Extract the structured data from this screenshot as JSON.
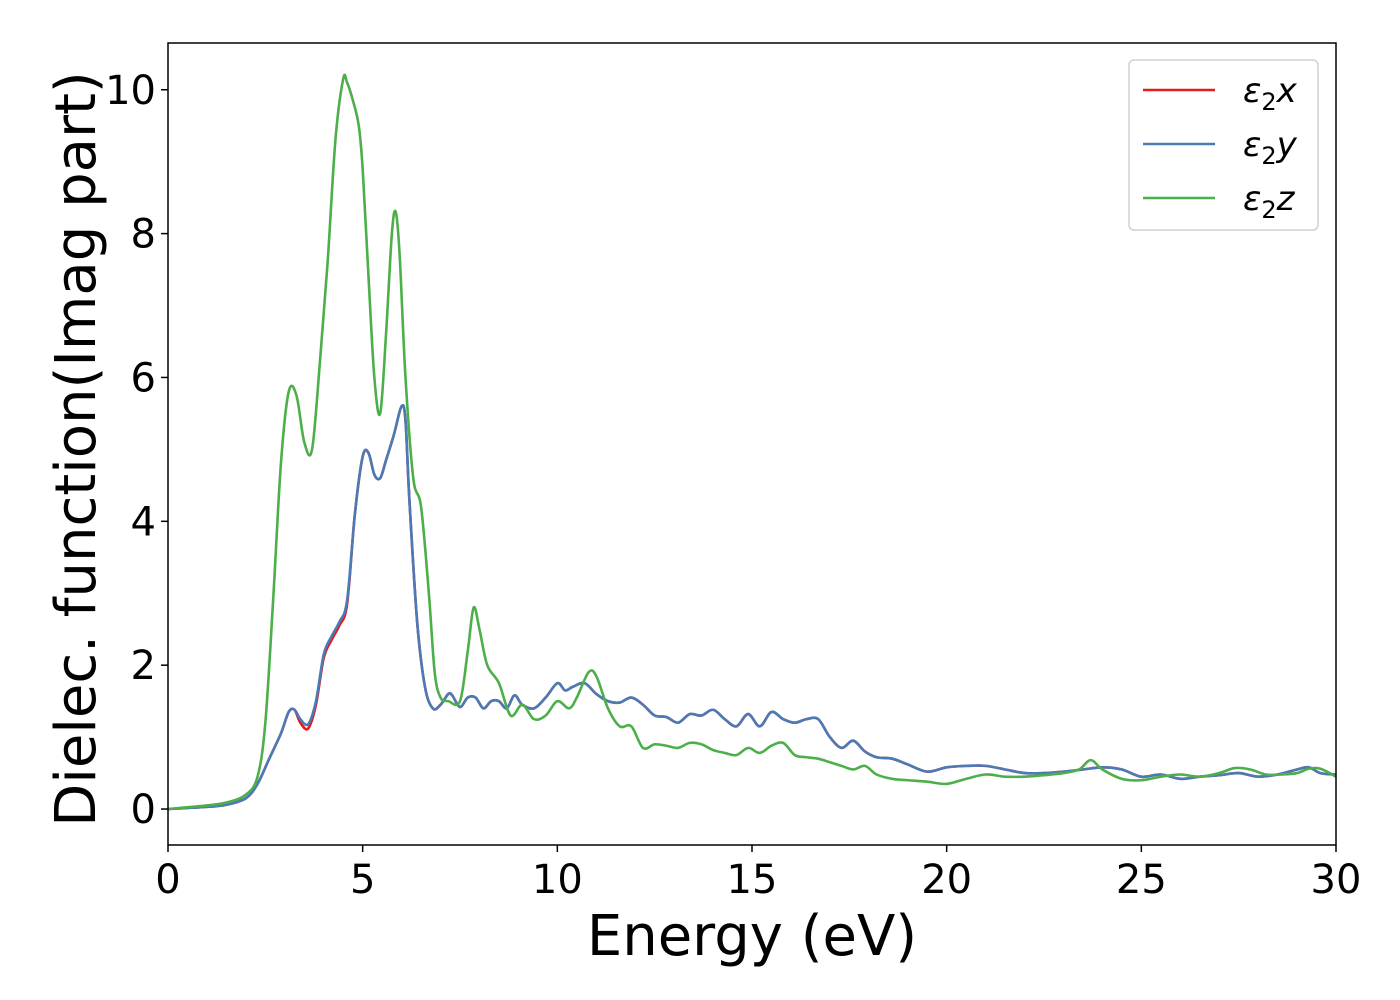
{
  "chart_data": {
    "type": "line",
    "title": "",
    "xlabel": "Energy (eV)",
    "ylabel": "Dielec. function(Imag part)",
    "xlim": [
      0,
      30
    ],
    "ylim": [
      -0.5,
      10.65
    ],
    "xticks": [
      0,
      5,
      10,
      15,
      20,
      25,
      30
    ],
    "yticks": [
      0,
      2,
      4,
      6,
      8,
      10
    ],
    "grid": false,
    "legend_position": "top-right",
    "series": [
      {
        "name": "ε2x",
        "legend": {
          "base": "ε",
          "sub": "2",
          "suffix": "x"
        },
        "color": "#e41a1c",
        "x": [
          0,
          1,
          1.5,
          2,
          2.3,
          2.6,
          2.9,
          3.1,
          3.25,
          3.4,
          3.6,
          3.8,
          4.0,
          4.2,
          4.4,
          4.6,
          4.8,
          5.0,
          5.15,
          5.3,
          5.45,
          5.6,
          5.8,
          6.0,
          6.1,
          6.2,
          6.4,
          6.6,
          6.8,
          7.0,
          7.2,
          7.3,
          7.5,
          7.7,
          7.9,
          8.1,
          8.3,
          8.5,
          8.7,
          8.9,
          9.1,
          9.4,
          9.7,
          10.0,
          10.2,
          10.4,
          10.7,
          11.0,
          11.3,
          11.6,
          11.9,
          12.2,
          12.5,
          12.8,
          13.1,
          13.4,
          13.7,
          14.0,
          14.3,
          14.6,
          14.9,
          15.2,
          15.5,
          15.8,
          16.1,
          16.4,
          16.7,
          17.0,
          17.3,
          17.6,
          17.9,
          18.2,
          18.6,
          19.0,
          19.5,
          20.0,
          20.5,
          21.0,
          21.5,
          22.0,
          22.5,
          23.0,
          23.5,
          24.0,
          24.5,
          25.0,
          25.5,
          26.0,
          26.5,
          27.0,
          27.5,
          28.0,
          28.5,
          29.0,
          29.3,
          29.6,
          30.0
        ],
        "values": [
          0,
          0.03,
          0.06,
          0.15,
          0.35,
          0.7,
          1.05,
          1.35,
          1.38,
          1.2,
          1.12,
          1.45,
          2.1,
          2.35,
          2.55,
          2.85,
          4.1,
          4.9,
          4.95,
          4.65,
          4.6,
          4.85,
          5.2,
          5.6,
          5.4,
          4.3,
          2.6,
          1.7,
          1.4,
          1.45,
          1.6,
          1.58,
          1.42,
          1.55,
          1.55,
          1.4,
          1.5,
          1.5,
          1.4,
          1.58,
          1.45,
          1.4,
          1.55,
          1.75,
          1.65,
          1.7,
          1.75,
          1.6,
          1.5,
          1.48,
          1.55,
          1.45,
          1.3,
          1.28,
          1.2,
          1.32,
          1.3,
          1.38,
          1.25,
          1.15,
          1.32,
          1.15,
          1.35,
          1.25,
          1.2,
          1.25,
          1.25,
          1.0,
          0.85,
          0.95,
          0.8,
          0.72,
          0.7,
          0.62,
          0.52,
          0.58,
          0.6,
          0.6,
          0.55,
          0.5,
          0.5,
          0.52,
          0.55,
          0.58,
          0.55,
          0.45,
          0.48,
          0.42,
          0.45,
          0.47,
          0.5,
          0.45,
          0.48,
          0.55,
          0.58,
          0.5,
          0.48
        ]
      },
      {
        "name": "ε2y",
        "legend": {
          "base": "ε",
          "sub": "2",
          "suffix": "y"
        },
        "color": "#4a7bb7",
        "x": [
          0,
          1,
          1.5,
          2,
          2.3,
          2.6,
          2.9,
          3.1,
          3.25,
          3.4,
          3.6,
          3.8,
          4.0,
          4.2,
          4.4,
          4.6,
          4.8,
          5.0,
          5.15,
          5.3,
          5.45,
          5.6,
          5.8,
          6.0,
          6.1,
          6.2,
          6.4,
          6.6,
          6.8,
          7.0,
          7.2,
          7.3,
          7.5,
          7.7,
          7.9,
          8.1,
          8.3,
          8.5,
          8.7,
          8.9,
          9.1,
          9.4,
          9.7,
          10.0,
          10.2,
          10.4,
          10.7,
          11.0,
          11.3,
          11.6,
          11.9,
          12.2,
          12.5,
          12.8,
          13.1,
          13.4,
          13.7,
          14.0,
          14.3,
          14.6,
          14.9,
          15.2,
          15.5,
          15.8,
          16.1,
          16.4,
          16.7,
          17.0,
          17.3,
          17.6,
          17.9,
          18.2,
          18.6,
          19.0,
          19.5,
          20.0,
          20.5,
          21.0,
          21.5,
          22.0,
          22.5,
          23.0,
          23.5,
          24.0,
          24.5,
          25.0,
          25.5,
          26.0,
          26.5,
          27.0,
          27.5,
          28.0,
          28.5,
          29.0,
          29.3,
          29.6,
          30.0
        ],
        "values": [
          0,
          0.03,
          0.06,
          0.15,
          0.35,
          0.7,
          1.05,
          1.35,
          1.38,
          1.25,
          1.18,
          1.5,
          2.15,
          2.4,
          2.6,
          2.9,
          4.1,
          4.9,
          4.95,
          4.65,
          4.6,
          4.85,
          5.2,
          5.6,
          5.4,
          4.3,
          2.6,
          1.7,
          1.4,
          1.45,
          1.6,
          1.58,
          1.42,
          1.55,
          1.55,
          1.4,
          1.5,
          1.5,
          1.4,
          1.58,
          1.45,
          1.4,
          1.55,
          1.75,
          1.65,
          1.7,
          1.75,
          1.6,
          1.5,
          1.48,
          1.55,
          1.45,
          1.3,
          1.28,
          1.2,
          1.32,
          1.3,
          1.38,
          1.25,
          1.15,
          1.32,
          1.15,
          1.35,
          1.25,
          1.2,
          1.25,
          1.25,
          1.0,
          0.85,
          0.95,
          0.8,
          0.72,
          0.7,
          0.62,
          0.52,
          0.58,
          0.6,
          0.6,
          0.55,
          0.5,
          0.5,
          0.52,
          0.55,
          0.58,
          0.55,
          0.45,
          0.48,
          0.42,
          0.45,
          0.47,
          0.5,
          0.45,
          0.48,
          0.55,
          0.58,
          0.5,
          0.48
        ]
      },
      {
        "name": "ε2z",
        "legend": {
          "base": "ε",
          "sub": "2",
          "suffix": "z"
        },
        "color": "#4daf4a",
        "x": [
          0,
          1,
          1.5,
          2,
          2.3,
          2.5,
          2.7,
          2.9,
          3.1,
          3.3,
          3.5,
          3.7,
          3.9,
          4.1,
          4.3,
          4.5,
          4.6,
          4.75,
          4.9,
          5.0,
          5.15,
          5.3,
          5.45,
          5.6,
          5.75,
          5.85,
          5.95,
          6.1,
          6.3,
          6.5,
          6.7,
          6.85,
          7.0,
          7.2,
          7.5,
          7.7,
          7.85,
          8.0,
          8.2,
          8.5,
          8.8,
          9.1,
          9.4,
          9.7,
          10.0,
          10.3,
          10.5,
          10.8,
          11.0,
          11.3,
          11.6,
          11.9,
          12.2,
          12.5,
          12.8,
          13.1,
          13.4,
          13.7,
          14.0,
          14.3,
          14.6,
          14.9,
          15.2,
          15.5,
          15.8,
          16.1,
          16.4,
          16.7,
          17.0,
          17.3,
          17.6,
          17.9,
          18.2,
          18.6,
          19.0,
          19.5,
          20.0,
          20.5,
          21.0,
          21.5,
          22.0,
          22.5,
          23.0,
          23.4,
          23.7,
          24.0,
          24.5,
          25.0,
          25.5,
          26.0,
          26.5,
          27.0,
          27.4,
          27.8,
          28.2,
          28.6,
          29.0,
          29.3,
          29.6,
          30.0
        ],
        "values": [
          0,
          0.05,
          0.09,
          0.2,
          0.45,
          1.2,
          2.9,
          4.8,
          5.8,
          5.75,
          5.1,
          5.0,
          6.2,
          7.6,
          9.3,
          10.15,
          10.1,
          9.85,
          9.5,
          8.9,
          7.4,
          6.0,
          5.5,
          6.6,
          8.0,
          8.3,
          7.7,
          6.0,
          4.6,
          4.2,
          3.0,
          1.9,
          1.55,
          1.5,
          1.5,
          2.2,
          2.8,
          2.5,
          2.0,
          1.75,
          1.3,
          1.45,
          1.25,
          1.3,
          1.5,
          1.4,
          1.55,
          1.9,
          1.85,
          1.4,
          1.15,
          1.15,
          0.85,
          0.9,
          0.88,
          0.85,
          0.92,
          0.9,
          0.82,
          0.78,
          0.75,
          0.85,
          0.78,
          0.88,
          0.92,
          0.75,
          0.72,
          0.7,
          0.65,
          0.6,
          0.55,
          0.6,
          0.48,
          0.42,
          0.4,
          0.38,
          0.35,
          0.42,
          0.48,
          0.45,
          0.45,
          0.47,
          0.5,
          0.55,
          0.68,
          0.55,
          0.42,
          0.4,
          0.45,
          0.48,
          0.45,
          0.5,
          0.57,
          0.55,
          0.48,
          0.48,
          0.5,
          0.56,
          0.56,
          0.45
        ]
      }
    ]
  }
}
